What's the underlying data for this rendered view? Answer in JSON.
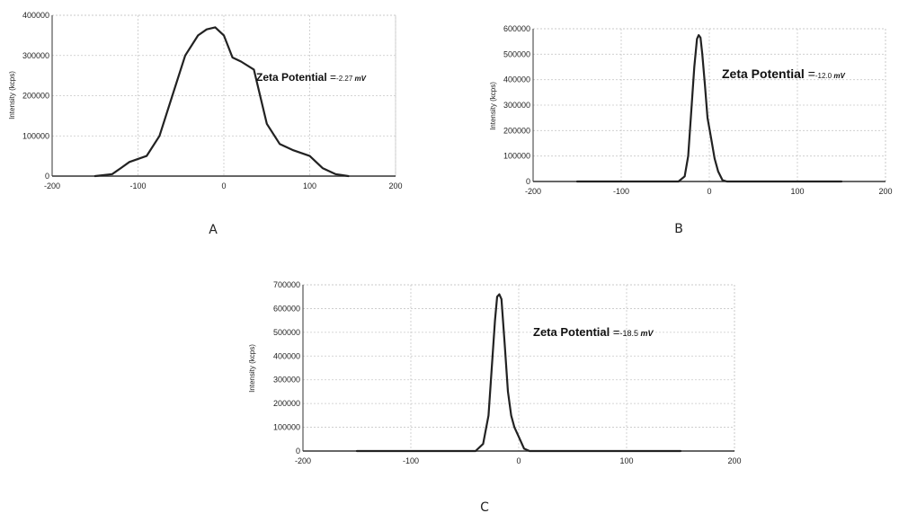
{
  "chart_data": [
    {
      "type": "line",
      "panel_label": "A",
      "ylabel": "Intensity (kcps)",
      "xlim": [
        -200,
        200
      ],
      "ylim": [
        0,
        400000
      ],
      "xticks": [
        -200,
        -100,
        0,
        100,
        200
      ],
      "yticks": [
        0,
        100000,
        200000,
        300000,
        400000
      ],
      "grid": true,
      "annotation": {
        "label": "Zeta Potential",
        "eq": "=",
        "value": "-2.27",
        "unit": "mV"
      },
      "series": [
        {
          "x": [
            -150,
            -130,
            -120,
            -110,
            -90,
            -75,
            -60,
            -45,
            -30,
            -20,
            -10,
            0,
            10,
            20,
            35,
            50,
            65,
            80,
            100,
            115,
            130,
            145
          ],
          "y": [
            0,
            5000,
            20000,
            35000,
            50000,
            100000,
            200000,
            300000,
            350000,
            365000,
            370000,
            350000,
            295000,
            285000,
            265000,
            130000,
            80000,
            65000,
            50000,
            20000,
            5000,
            0
          ]
        }
      ]
    },
    {
      "type": "line",
      "panel_label": "B",
      "ylabel": "Intensity (kcps)",
      "xlim": [
        -200,
        200
      ],
      "ylim": [
        0,
        600000
      ],
      "xticks": [
        -200,
        -100,
        0,
        100,
        200
      ],
      "yticks": [
        0,
        100000,
        200000,
        300000,
        400000,
        500000,
        600000
      ],
      "grid": true,
      "annotation": {
        "label": "Zeta Potential",
        "eq": "=",
        "value": "-12.0",
        "unit": "mV"
      },
      "series": [
        {
          "x": [
            -150,
            -35,
            -28,
            -24,
            -20,
            -17,
            -14,
            -12,
            -10,
            -8,
            -5,
            -2,
            2,
            6,
            10,
            15,
            20,
            150
          ],
          "y": [
            0,
            0,
            20000,
            100000,
            300000,
            450000,
            560000,
            575000,
            565000,
            500000,
            380000,
            250000,
            170000,
            90000,
            40000,
            5000,
            0,
            0
          ]
        }
      ]
    },
    {
      "type": "line",
      "panel_label": "C",
      "ylabel": "Intensity (kcps)",
      "xlim": [
        -200,
        200
      ],
      "ylim": [
        0,
        700000
      ],
      "xticks": [
        -200,
        -100,
        0,
        100,
        200
      ],
      "yticks": [
        0,
        100000,
        200000,
        300000,
        400000,
        500000,
        600000,
        700000
      ],
      "grid": true,
      "annotation": {
        "label": "Zeta Potential",
        "eq": "=",
        "value": "-18.5",
        "unit": "mV"
      },
      "series": [
        {
          "x": [
            -150,
            -40,
            -33,
            -28,
            -25,
            -22,
            -20,
            -18,
            -16,
            -13,
            -10,
            -7,
            -4,
            0,
            5,
            10,
            150
          ],
          "y": [
            0,
            0,
            30000,
            150000,
            350000,
            550000,
            650000,
            660000,
            640000,
            450000,
            250000,
            150000,
            100000,
            60000,
            10000,
            0,
            0
          ]
        }
      ]
    }
  ]
}
